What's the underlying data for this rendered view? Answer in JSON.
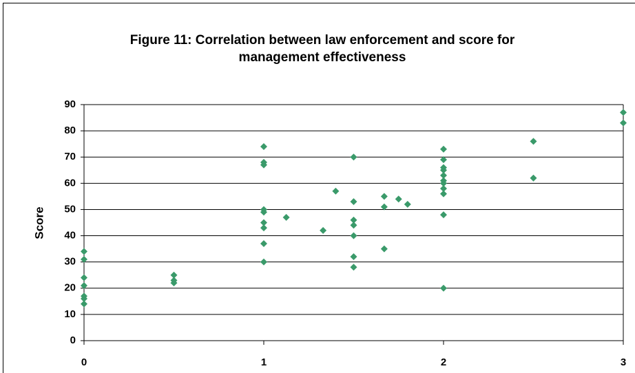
{
  "chart_data": {
    "type": "scatter",
    "title": "Figure 11: Correlation between law enforcement and score for management effectiveness",
    "y_label": "Score",
    "color": "#3a9a6a",
    "x": [
      0,
      0,
      0,
      0,
      0,
      0,
      0,
      0.5,
      0.5,
      0.5,
      1,
      1,
      1,
      1,
      1,
      1,
      1,
      1,
      1,
      1.125,
      1.33,
      1.4,
      1.5,
      1.5,
      1.5,
      1.5,
      1.5,
      1.5,
      1.5,
      1.67,
      1.67,
      1.67,
      1.75,
      1.8,
      2,
      2,
      2,
      2,
      2,
      2,
      2,
      2,
      2,
      2,
      2,
      2.5,
      2.5,
      3,
      3
    ],
    "values": [
      34,
      31,
      24,
      21,
      17,
      16,
      14,
      25,
      23,
      22,
      74,
      68,
      67,
      50,
      49,
      45,
      43,
      37,
      30,
      47,
      42,
      57,
      70,
      53,
      46,
      44,
      40,
      32,
      28,
      55,
      51,
      35,
      54,
      52,
      73,
      69,
      66,
      65,
      63,
      61,
      60,
      58,
      56,
      48,
      20,
      76,
      62,
      87,
      83
    ],
    "xlim": [
      0,
      3
    ],
    "xticks": [
      0,
      1,
      2,
      3
    ],
    "ylim": [
      0,
      90
    ],
    "yticks": [
      0,
      10,
      20,
      30,
      40,
      50,
      60,
      70,
      80,
      90
    ],
    "grid": true
  }
}
